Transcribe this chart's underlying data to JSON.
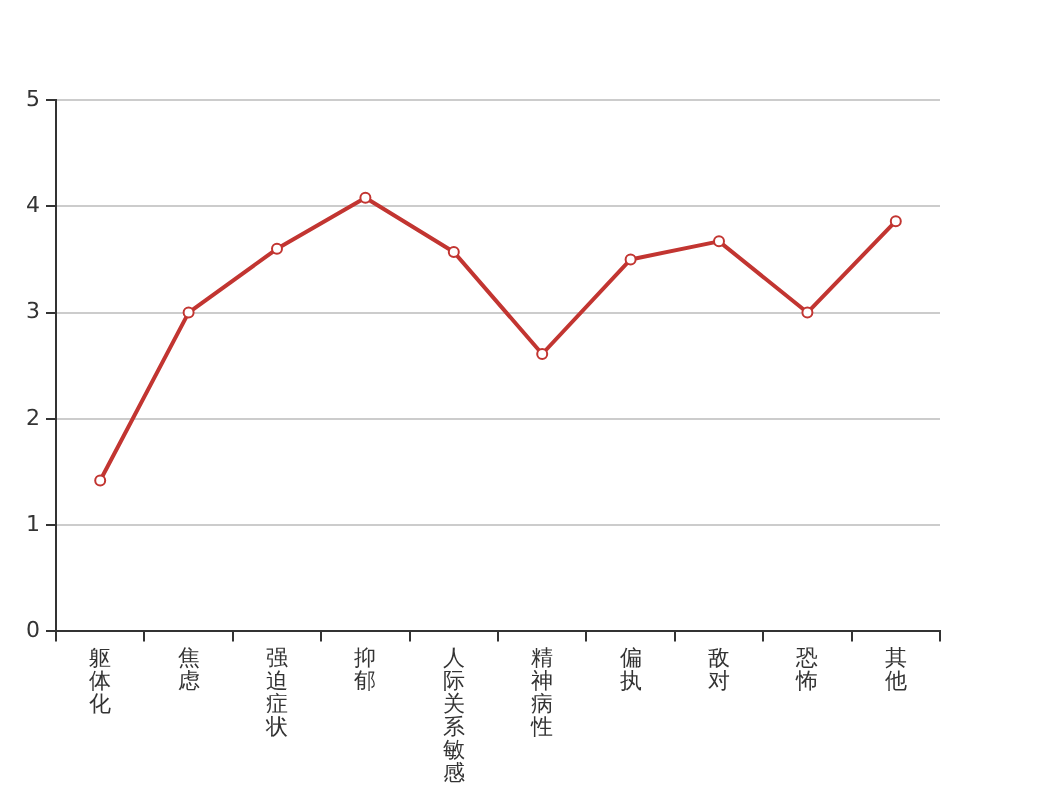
{
  "chart_data": {
    "type": "line",
    "categories": [
      "躯体化",
      "焦虑",
      "强迫症状",
      "抑郁",
      "人际关系敏感",
      "精神病性",
      "偏执",
      "敌对",
      "恐怖",
      "其他"
    ],
    "series": [
      {
        "color": "#c23531",
        "values": [
          1.42,
          3.0,
          3.6,
          4.08,
          3.57,
          2.61,
          3.5,
          3.67,
          3.0,
          3.86
        ]
      }
    ],
    "ylim": [
      0,
      5
    ],
    "yticks": [
      0,
      1,
      2,
      3,
      4,
      5
    ],
    "grid": "y",
    "legend": false,
    "marker": "circle",
    "line_style": "solid"
  }
}
